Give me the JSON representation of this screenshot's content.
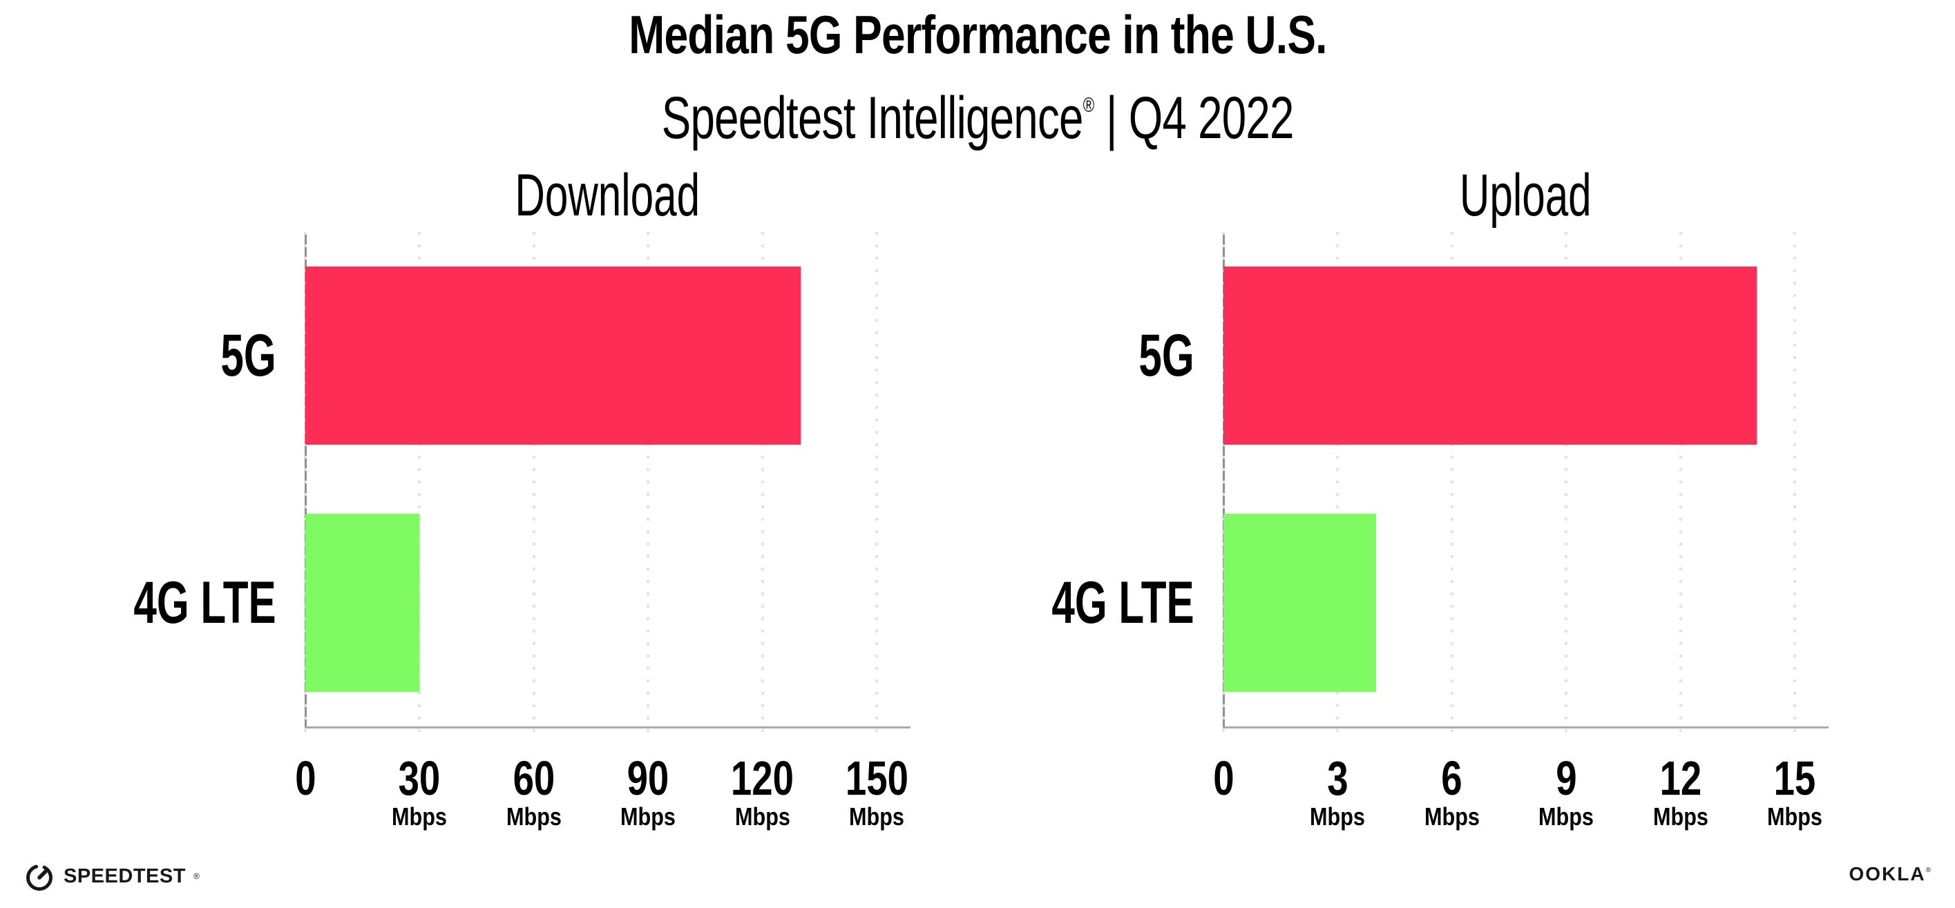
{
  "header": {
    "title": "Median 5G Performance in the U.S.",
    "subtitle_brand": "Speedtest Intelligence",
    "subtitle_reg": "®",
    "subtitle_rest": " | Q4 2022"
  },
  "chart_data": [
    {
      "type": "bar",
      "orientation": "horizontal",
      "title": "Download",
      "categories": [
        "5G",
        "4G LTE"
      ],
      "values": [
        130,
        30
      ],
      "unit": "Mbps",
      "ticks": [
        0,
        30,
        60,
        90,
        120,
        150
      ],
      "xlim": [
        0,
        158.5
      ],
      "grid": "dotted-vertical",
      "legend": "none",
      "colors": {
        "5G": "#fd2d55",
        "4G LTE": "#7ffa62"
      }
    },
    {
      "type": "bar",
      "orientation": "horizontal",
      "title": "Upload",
      "categories": [
        "5G",
        "4G LTE"
      ],
      "values": [
        14,
        4
      ],
      "unit": "Mbps",
      "ticks": [
        0,
        3,
        6,
        9,
        12,
        15
      ],
      "xlim": [
        0,
        15.85
      ],
      "grid": "dotted-vertical",
      "legend": "none",
      "colors": {
        "5G": "#fd2d55",
        "4G LTE": "#7ffa62"
      }
    }
  ],
  "colors": {
    "bar_5g": "#fd2d55",
    "bar_4g_lte": "#7ffa62",
    "gridline": "#e2e1ec",
    "axis": "#8e8e8e",
    "text": "#000000"
  },
  "footer": {
    "speedtest_label": "SPEEDTEST",
    "speedtest_reg": "®",
    "ookla_label": "OOKLA",
    "ookla_reg": "®"
  }
}
